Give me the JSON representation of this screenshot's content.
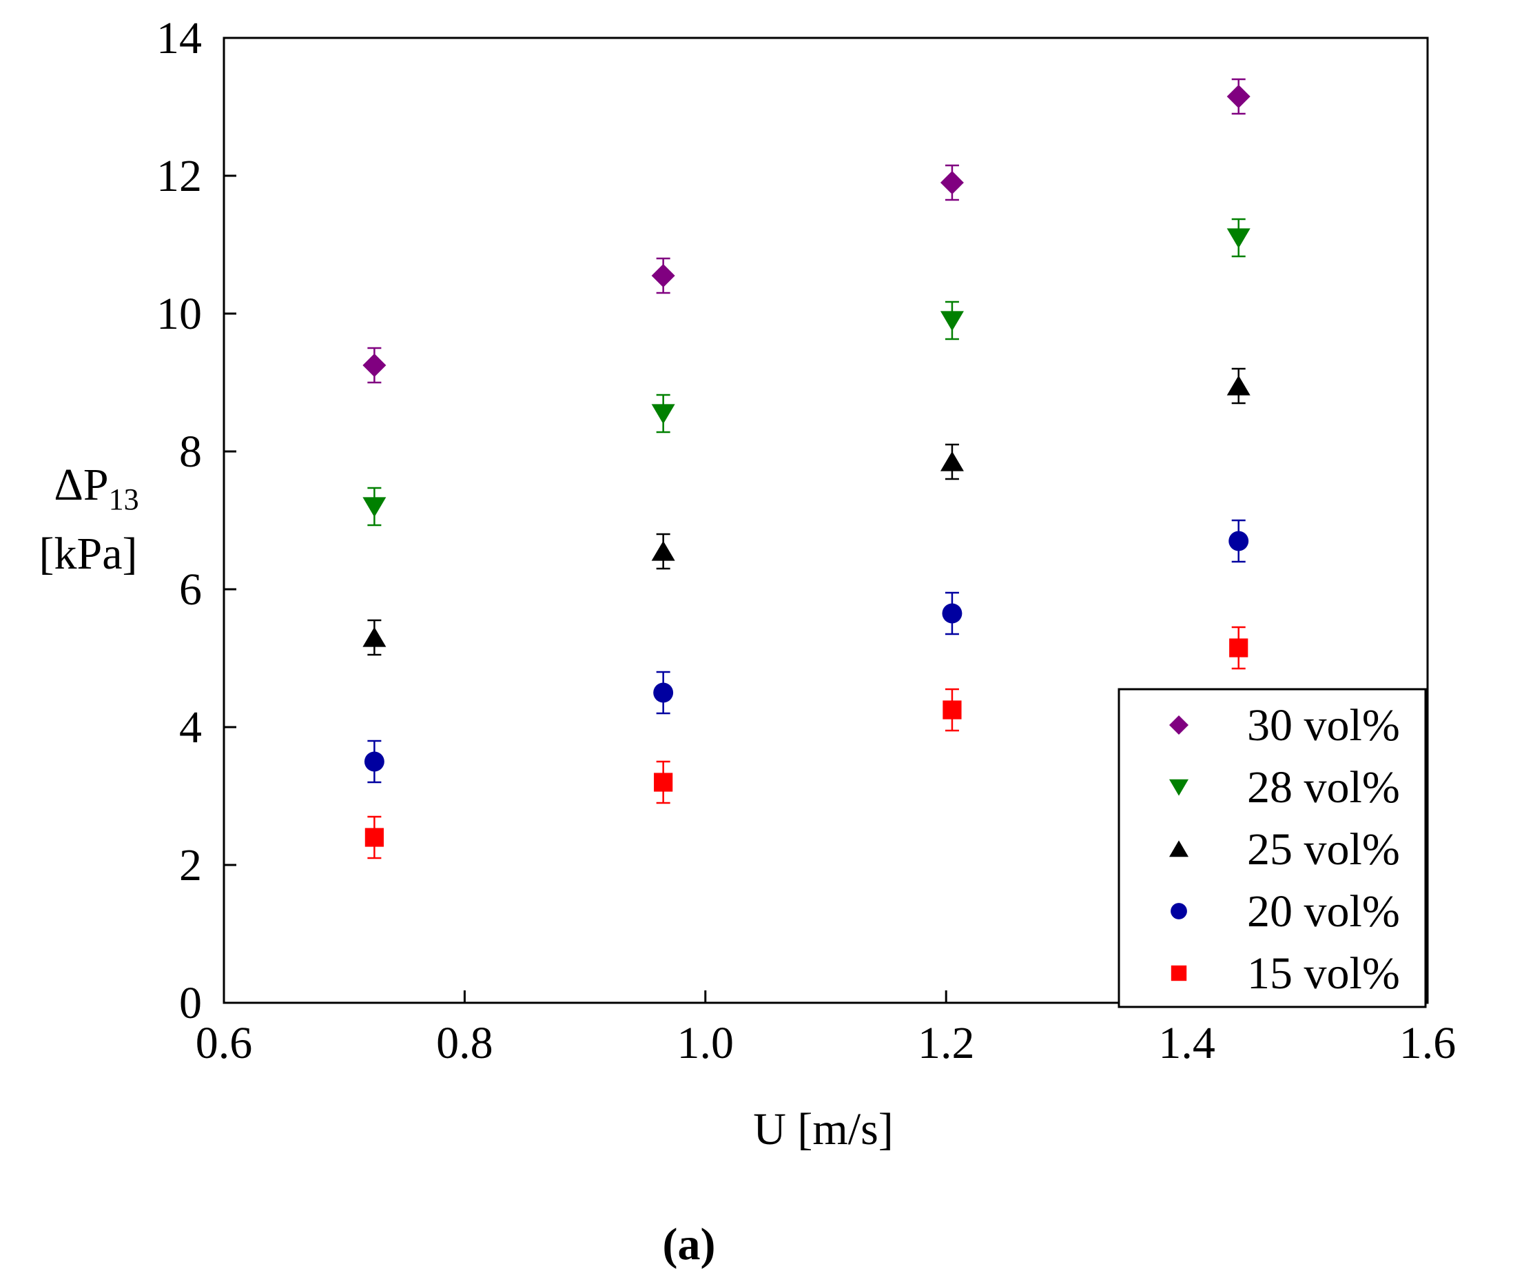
{
  "chart_data": {
    "type": "scatter",
    "title": "",
    "panel_label": "a",
    "xlabel": "U [m/s]",
    "ylabel": {
      "main": "ΔP",
      "subscript": "13",
      "unit": "[kPa]"
    },
    "xlim": [
      0.6,
      1.6
    ],
    "ylim": [
      0,
      14
    ],
    "xticks": [
      "0.6",
      "0.8",
      "1.0",
      "1.2",
      "1.4",
      "1.6"
    ],
    "yticks": [
      "0",
      "2",
      "4",
      "6",
      "8",
      "10",
      "12",
      "14"
    ],
    "grid": false,
    "legend_position": "bottom-right",
    "x": [
      0.725,
      0.965,
      1.205,
      1.443
    ],
    "series": [
      {
        "name": "30 vol%",
        "marker": "diamond",
        "color": "#800080",
        "values": [
          9.25,
          10.55,
          11.9,
          13.15
        ],
        "errors": [
          0.25,
          0.25,
          0.25,
          0.25
        ]
      },
      {
        "name": "28 vol%",
        "marker": "triangle-down",
        "color": "#008000",
        "values": [
          7.2,
          8.55,
          9.9,
          11.1
        ],
        "errors": [
          0.27,
          0.27,
          0.27,
          0.27
        ]
      },
      {
        "name": "25 vol%",
        "marker": "triangle-up",
        "color": "#000000",
        "values": [
          5.3,
          6.55,
          7.85,
          8.95
        ],
        "errors": [
          0.25,
          0.25,
          0.25,
          0.25
        ]
      },
      {
        "name": "20 vol%",
        "marker": "circle",
        "color": "#0000a0",
        "values": [
          3.5,
          4.5,
          5.65,
          6.7
        ],
        "errors": [
          0.3,
          0.3,
          0.3,
          0.3
        ]
      },
      {
        "name": "15 vol%",
        "marker": "square",
        "color": "#ff0000",
        "values": [
          2.4,
          3.2,
          4.25,
          5.15
        ],
        "errors": [
          0.3,
          0.3,
          0.3,
          0.3
        ]
      }
    ]
  }
}
